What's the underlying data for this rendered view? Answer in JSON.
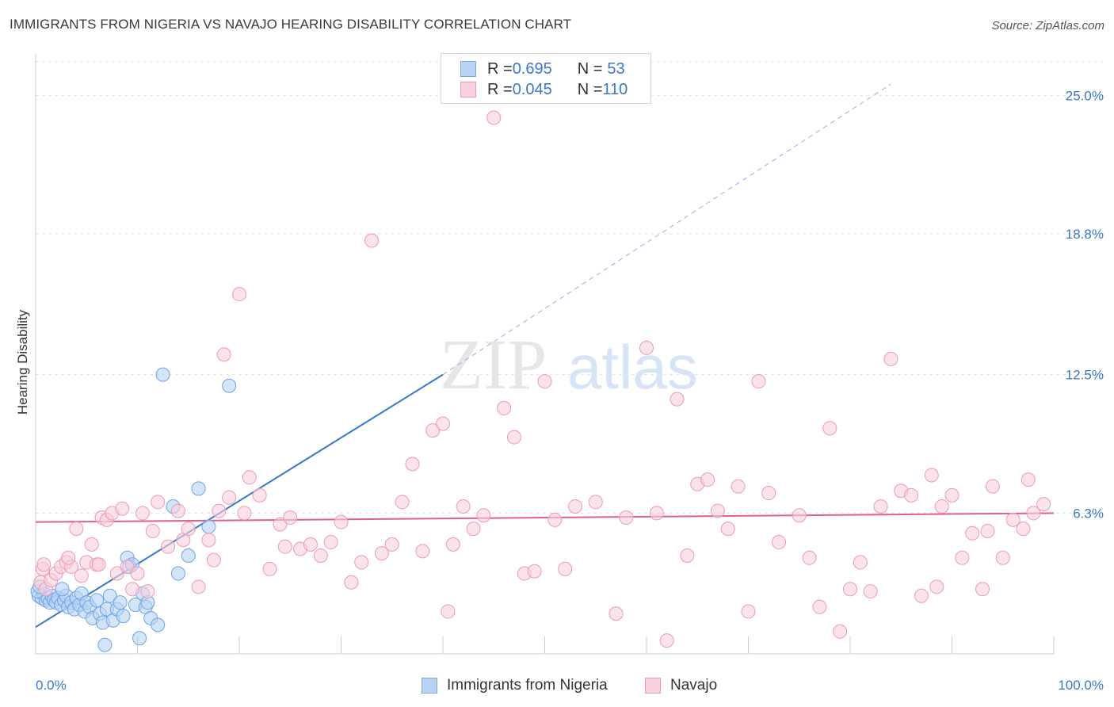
{
  "header": {
    "title": "IMMIGRANTS FROM NIGERIA VS NAVAJO HEARING DISABILITY CORRELATION CHART",
    "source": "Source: ZipAtlas.com"
  },
  "watermark": {
    "zip": "ZIP",
    "atlas": "atlas"
  },
  "legend": {
    "rows": [
      {
        "r_label": "R = ",
        "r_value": "0.695",
        "n_label": "N = ",
        "n_value": "53",
        "color": "#a9c8f0",
        "border": "#7aa8e0"
      },
      {
        "r_label": "R = ",
        "r_value": "0.045",
        "n_label": "N = ",
        "n_value": "110",
        "color": "#f7c3d3",
        "border": "#ec9ab5"
      }
    ]
  },
  "bottom_legend": [
    {
      "label": "Immigrants from Nigeria",
      "color": "#a9c8f0",
      "border": "#7aa8e0"
    },
    {
      "label": "Navajo",
      "color": "#f7c3d3",
      "border": "#ec9ab5"
    }
  ],
  "chart_data": {
    "type": "scatter",
    "ylabel": "Hearing Disability",
    "xlim": [
      0,
      100
    ],
    "ylim": [
      0,
      26.5
    ],
    "x_tick_labels": [
      "0.0%",
      "100.0%"
    ],
    "y_ticks": [
      6.3,
      12.5,
      18.8,
      25.0
    ],
    "y_tick_labels": [
      "6.3%",
      "12.5%",
      "18.8%",
      "25.0%"
    ],
    "grid": true,
    "series": [
      {
        "name": "Immigrants from Nigeria",
        "color": "#6fa3e6",
        "fill": "#b8d3f4",
        "trendline": {
          "x0": 0,
          "y0": 1.2,
          "x1": 40,
          "y1": 12.5,
          "dashed_to_x": 84,
          "dashed_to_y": 25.5,
          "color": "#3578cc"
        },
        "points": [
          [
            0.3,
            2.6
          ],
          [
            0.6,
            2.5
          ],
          [
            0.8,
            2.7
          ],
          [
            1.0,
            2.4
          ],
          [
            1.2,
            2.5
          ],
          [
            1.4,
            2.3
          ],
          [
            1.6,
            2.6
          ],
          [
            1.8,
            2.4
          ],
          [
            2.0,
            2.3
          ],
          [
            2.2,
            2.5
          ],
          [
            2.5,
            2.2
          ],
          [
            2.8,
            2.4
          ],
          [
            3.0,
            2.6
          ],
          [
            3.2,
            2.1
          ],
          [
            3.5,
            2.3
          ],
          [
            3.8,
            2.0
          ],
          [
            4.0,
            2.5
          ],
          [
            4.3,
            2.2
          ],
          [
            4.5,
            2.7
          ],
          [
            4.8,
            1.9
          ],
          [
            5.0,
            2.3
          ],
          [
            5.3,
            2.1
          ],
          [
            5.6,
            1.6
          ],
          [
            6.0,
            2.4
          ],
          [
            6.3,
            1.8
          ],
          [
            6.6,
            1.4
          ],
          [
            7.0,
            2.0
          ],
          [
            7.3,
            2.6
          ],
          [
            7.6,
            1.5
          ],
          [
            8.0,
            2.0
          ],
          [
            8.3,
            2.3
          ],
          [
            8.6,
            1.7
          ],
          [
            9.0,
            4.3
          ],
          [
            9.2,
            3.9
          ],
          [
            9.5,
            4.0
          ],
          [
            9.8,
            2.2
          ],
          [
            10.2,
            0.7
          ],
          [
            10.5,
            2.7
          ],
          [
            10.8,
            2.1
          ],
          [
            11.0,
            2.3
          ],
          [
            11.3,
            1.6
          ],
          [
            12.0,
            1.3
          ],
          [
            12.5,
            12.5
          ],
          [
            13.5,
            6.6
          ],
          [
            14.0,
            3.6
          ],
          [
            15.0,
            4.4
          ],
          [
            16.0,
            7.4
          ],
          [
            17.0,
            5.7
          ],
          [
            19.0,
            12.0
          ],
          [
            6.8,
            0.4
          ],
          [
            0.2,
            2.8
          ],
          [
            0.4,
            3.0
          ],
          [
            2.6,
            2.9
          ]
        ]
      },
      {
        "name": "Navajo",
        "color": "#ec9ab5",
        "fill": "#f9d1de",
        "trendline": {
          "x0": 0,
          "y0": 5.9,
          "x1": 100,
          "y1": 6.3,
          "color": "#e0608a"
        },
        "points": [
          [
            0.5,
            3.2
          ],
          [
            0.7,
            3.8
          ],
          [
            1.0,
            2.9
          ],
          [
            1.5,
            3.3
          ],
          [
            2.0,
            3.6
          ],
          [
            2.5,
            3.9
          ],
          [
            3.0,
            4.1
          ],
          [
            3.5,
            3.9
          ],
          [
            4.0,
            5.6
          ],
          [
            4.5,
            3.5
          ],
          [
            5.0,
            4.1
          ],
          [
            5.5,
            4.9
          ],
          [
            6.0,
            4.0
          ],
          [
            6.5,
            6.1
          ],
          [
            7.0,
            6.0
          ],
          [
            7.5,
            6.3
          ],
          [
            8.0,
            3.6
          ],
          [
            9.0,
            3.9
          ],
          [
            9.5,
            2.9
          ],
          [
            10.0,
            3.6
          ],
          [
            10.5,
            6.3
          ],
          [
            11.0,
            2.8
          ],
          [
            12.0,
            6.8
          ],
          [
            13.0,
            4.8
          ],
          [
            14.0,
            6.4
          ],
          [
            14.5,
            5.1
          ],
          [
            15.0,
            5.6
          ],
          [
            16.0,
            3.0
          ],
          [
            17.0,
            5.1
          ],
          [
            17.5,
            4.2
          ],
          [
            18.0,
            6.4
          ],
          [
            18.5,
            13.4
          ],
          [
            19.0,
            7.0
          ],
          [
            20.0,
            16.1
          ],
          [
            20.5,
            6.3
          ],
          [
            21.0,
            7.9
          ],
          [
            22.0,
            7.1
          ],
          [
            23.0,
            3.8
          ],
          [
            24.0,
            5.8
          ],
          [
            25.0,
            6.1
          ],
          [
            26.0,
            4.7
          ],
          [
            27.0,
            4.9
          ],
          [
            28.0,
            4.4
          ],
          [
            29.0,
            5.0
          ],
          [
            30.0,
            5.9
          ],
          [
            31.0,
            3.2
          ],
          [
            32.0,
            4.1
          ],
          [
            33.0,
            18.5
          ],
          [
            34.0,
            4.5
          ],
          [
            35.0,
            4.9
          ],
          [
            36.0,
            6.8
          ],
          [
            37.0,
            8.5
          ],
          [
            38.0,
            4.6
          ],
          [
            39.0,
            10.0
          ],
          [
            40.0,
            10.3
          ],
          [
            40.5,
            1.9
          ],
          [
            41.0,
            4.9
          ],
          [
            42.0,
            6.6
          ],
          [
            43.0,
            5.6
          ],
          [
            44.0,
            6.2
          ],
          [
            45.0,
            24.0
          ],
          [
            46.0,
            11.0
          ],
          [
            47.0,
            9.7
          ],
          [
            48.0,
            3.6
          ],
          [
            49.0,
            3.7
          ],
          [
            50.0,
            12.2
          ],
          [
            51.0,
            6.0
          ],
          [
            53.0,
            6.6
          ],
          [
            55.0,
            6.8
          ],
          [
            57.0,
            1.8
          ],
          [
            58.0,
            6.1
          ],
          [
            60.0,
            13.7
          ],
          [
            61.0,
            6.3
          ],
          [
            62.0,
            0.6
          ],
          [
            63.0,
            11.4
          ],
          [
            64.0,
            4.4
          ],
          [
            65.0,
            7.6
          ],
          [
            66.0,
            7.8
          ],
          [
            67.0,
            6.4
          ],
          [
            68.0,
            5.6
          ],
          [
            69.0,
            7.5
          ],
          [
            70.0,
            1.9
          ],
          [
            71.0,
            12.2
          ],
          [
            72.0,
            7.2
          ],
          [
            73.0,
            5.0
          ],
          [
            75.0,
            6.2
          ],
          [
            76.0,
            4.3
          ],
          [
            77.0,
            2.1
          ],
          [
            78.0,
            10.1
          ],
          [
            79.0,
            1.0
          ],
          [
            80.0,
            2.9
          ],
          [
            81.0,
            4.1
          ],
          [
            82.0,
            2.8
          ],
          [
            83.0,
            6.6
          ],
          [
            84.0,
            13.2
          ],
          [
            85.0,
            7.3
          ],
          [
            86.0,
            7.1
          ],
          [
            87.0,
            2.6
          ],
          [
            88.0,
            8.0
          ],
          [
            89.0,
            6.6
          ],
          [
            90.0,
            7.1
          ],
          [
            91.0,
            4.3
          ],
          [
            92.0,
            5.4
          ],
          [
            93.0,
            2.9
          ],
          [
            94.0,
            7.5
          ],
          [
            95.0,
            4.3
          ],
          [
            96.0,
            6.0
          ],
          [
            97.0,
            5.6
          ],
          [
            98.0,
            6.3
          ],
          [
            99.0,
            6.7
          ],
          [
            0.8,
            4.0
          ],
          [
            3.2,
            4.3
          ],
          [
            6.2,
            4.0
          ],
          [
            8.5,
            6.5
          ],
          [
            11.5,
            5.5
          ],
          [
            24.5,
            4.8
          ],
          [
            52.0,
            3.8
          ],
          [
            88.5,
            3.0
          ],
          [
            93.5,
            5.5
          ],
          [
            97.5,
            7.8
          ]
        ]
      }
    ]
  }
}
